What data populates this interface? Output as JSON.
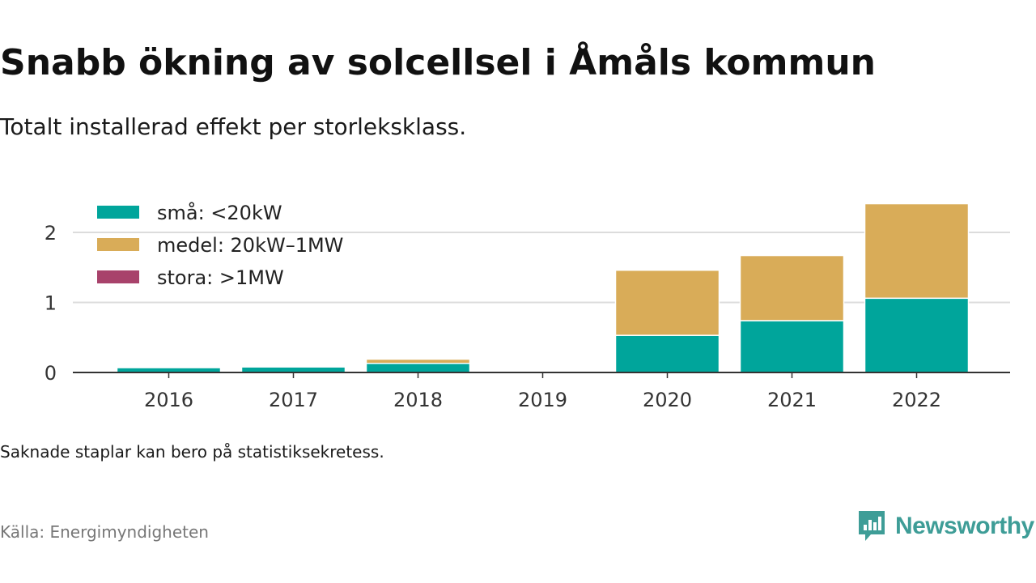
{
  "header": {
    "title": "Snabb ökning av solcellsel i Åmåls kommun",
    "subtitle": "Totalt installerad effekt per storleksklass."
  },
  "footer": {
    "note": "Saknade staplar kan bero på statistiksekretess.",
    "source": "Källa: Energimyndigheten",
    "brand": "Newsworthy"
  },
  "colors": {
    "small": "#00a59b",
    "medium": "#d9ac58",
    "large": "#a8426b",
    "grid": "#dcdcdc",
    "axis": "#333333",
    "brand": "#3e9d97"
  },
  "icons": {
    "logo": "newsworthy-logo-icon"
  },
  "chart_data": {
    "type": "bar",
    "stacked": true,
    "categories": [
      "2016",
      "2017",
      "2018",
      "2019",
      "2020",
      "2021",
      "2022"
    ],
    "series": [
      {
        "name": "små: <20kW",
        "color": "#00a59b",
        "values": [
          0.07,
          0.08,
          0.13,
          0,
          0.53,
          0.74,
          1.06
        ]
      },
      {
        "name": "medel: 20kW–1MW",
        "color": "#d9ac58",
        "values": [
          0.01,
          0.01,
          0.06,
          0,
          0.93,
          0.93,
          1.35
        ]
      },
      {
        "name": "stora: >1MW",
        "color": "#a8426b",
        "values": [
          0,
          0,
          0,
          0,
          0,
          0,
          0
        ]
      }
    ],
    "y_ticks": [
      "0",
      "1",
      "2"
    ],
    "ylim": [
      0,
      2.5
    ],
    "grid": "horizontal",
    "legend": "top-left",
    "xlabel": "",
    "ylabel": ""
  }
}
